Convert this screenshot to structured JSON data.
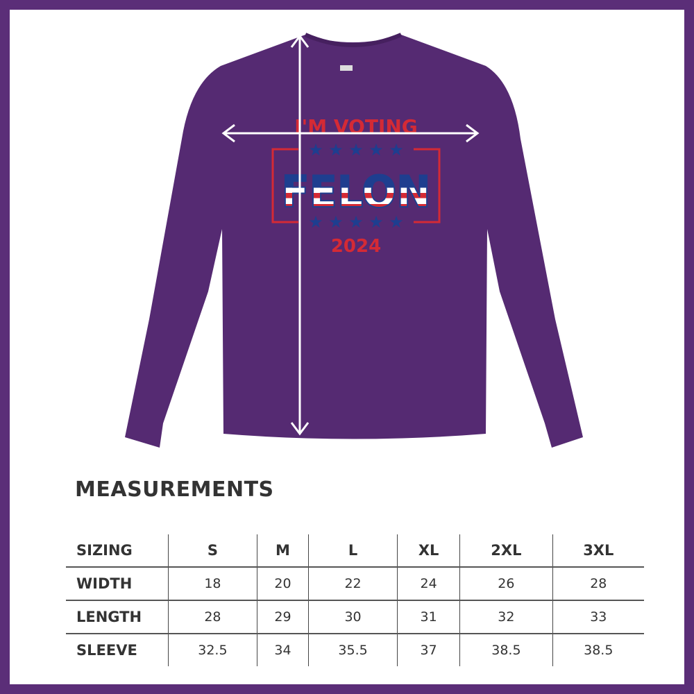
{
  "shirt": {
    "color": "#552a72",
    "print": {
      "top_line": "I'M VOTING",
      "main_word": "FELON",
      "year": "2024"
    },
    "arrows": [
      "width-arrow",
      "length-arrow"
    ]
  },
  "measurements": {
    "title": "MEASUREMENTS",
    "header": [
      "SIZING",
      "S",
      "M",
      "L",
      "XL",
      "2XL",
      "3XL"
    ],
    "rows": [
      [
        "WIDTH",
        "18",
        "20",
        "22",
        "24",
        "26",
        "28"
      ],
      [
        "LENGTH",
        "28",
        "29",
        "30",
        "31",
        "32",
        "33"
      ],
      [
        "SLEEVE",
        "32.5",
        "34",
        "35.5",
        "37",
        "38.5",
        "38.5"
      ]
    ]
  },
  "colors": {
    "border": "#5b2e78",
    "text": "#333333",
    "print_red": "#d42a35",
    "print_blue": "#1e3e8f"
  }
}
